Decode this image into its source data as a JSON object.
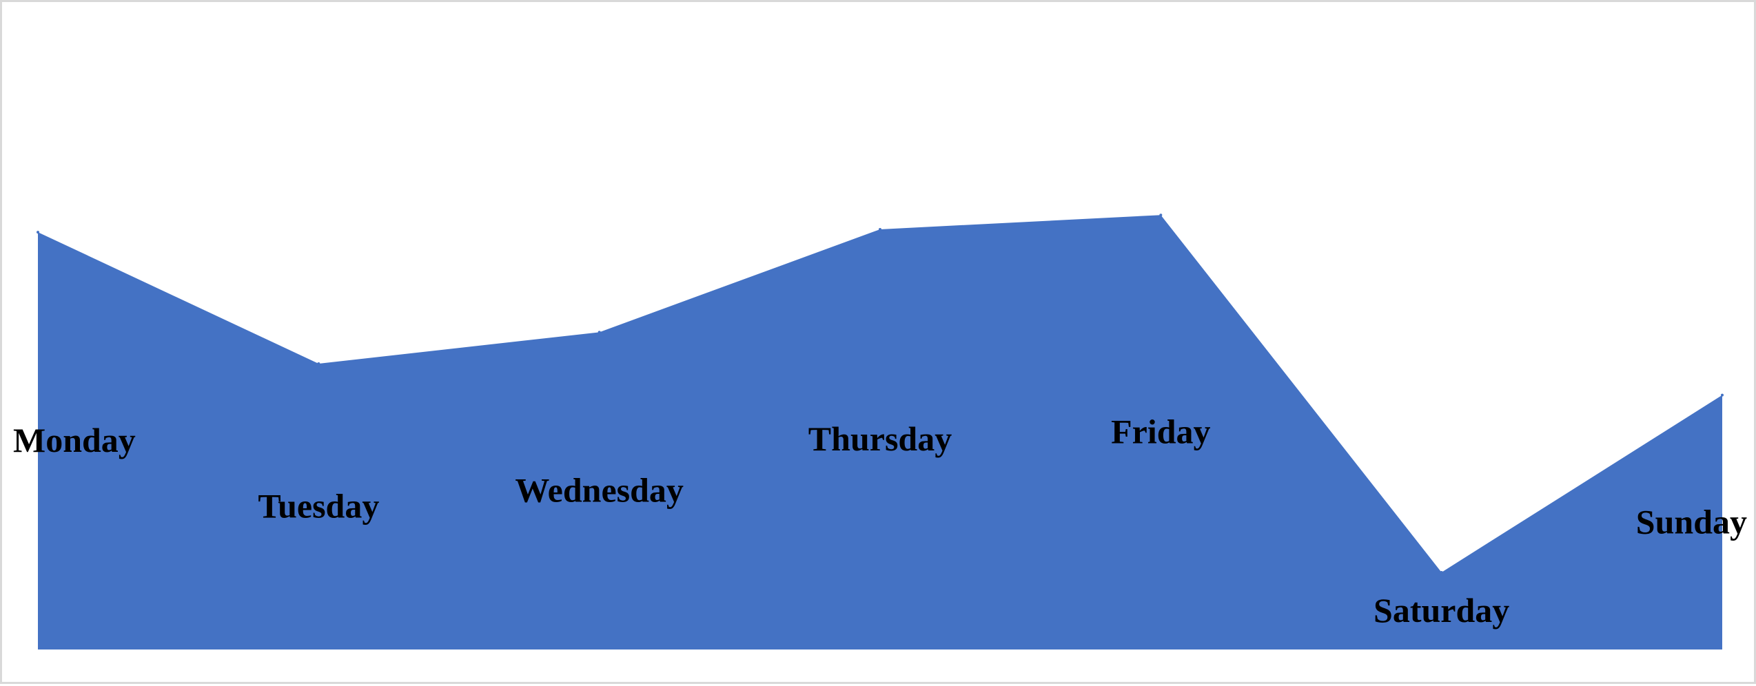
{
  "chart_data": {
    "type": "area",
    "categories": [
      "Monday",
      "Tuesday",
      "Wednesday",
      "Thursday",
      "Friday",
      "Saturday",
      "Sunday"
    ],
    "values": [
      73,
      50,
      55.5,
      73.5,
      76,
      13.5,
      44.5
    ],
    "ylim": [
      0,
      100
    ],
    "fill_color": "#4472C4",
    "grid": false,
    "legend": "none",
    "data_labels": true
  }
}
